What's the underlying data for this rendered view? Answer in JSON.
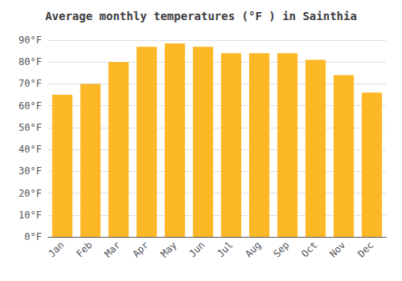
{
  "chart_data": {
    "type": "bar",
    "title": "Average monthly temperatures (°F ) in Sainthia",
    "categories": [
      "Jan",
      "Feb",
      "Mar",
      "Apr",
      "May",
      "Jun",
      "Jul",
      "Aug",
      "Sep",
      "Oct",
      "Nov",
      "Dec"
    ],
    "values": [
      65,
      70,
      80,
      87,
      88.5,
      87,
      84,
      84,
      84,
      81,
      74,
      66
    ],
    "color": "#FDB827",
    "ylim": [
      0,
      90
    ],
    "yticks": [
      {
        "value": 0,
        "label": "0°F"
      },
      {
        "value": 10,
        "label": "10°F"
      },
      {
        "value": 20,
        "label": "20°F"
      },
      {
        "value": 30,
        "label": "30°F"
      },
      {
        "value": 40,
        "label": "40°F"
      },
      {
        "value": 50,
        "label": "50°F"
      },
      {
        "value": 60,
        "label": "60°F"
      },
      {
        "value": 70,
        "label": "70°F"
      },
      {
        "value": 80,
        "label": "80°F"
      },
      {
        "value": 90,
        "label": "90°F"
      }
    ],
    "grid": true
  }
}
